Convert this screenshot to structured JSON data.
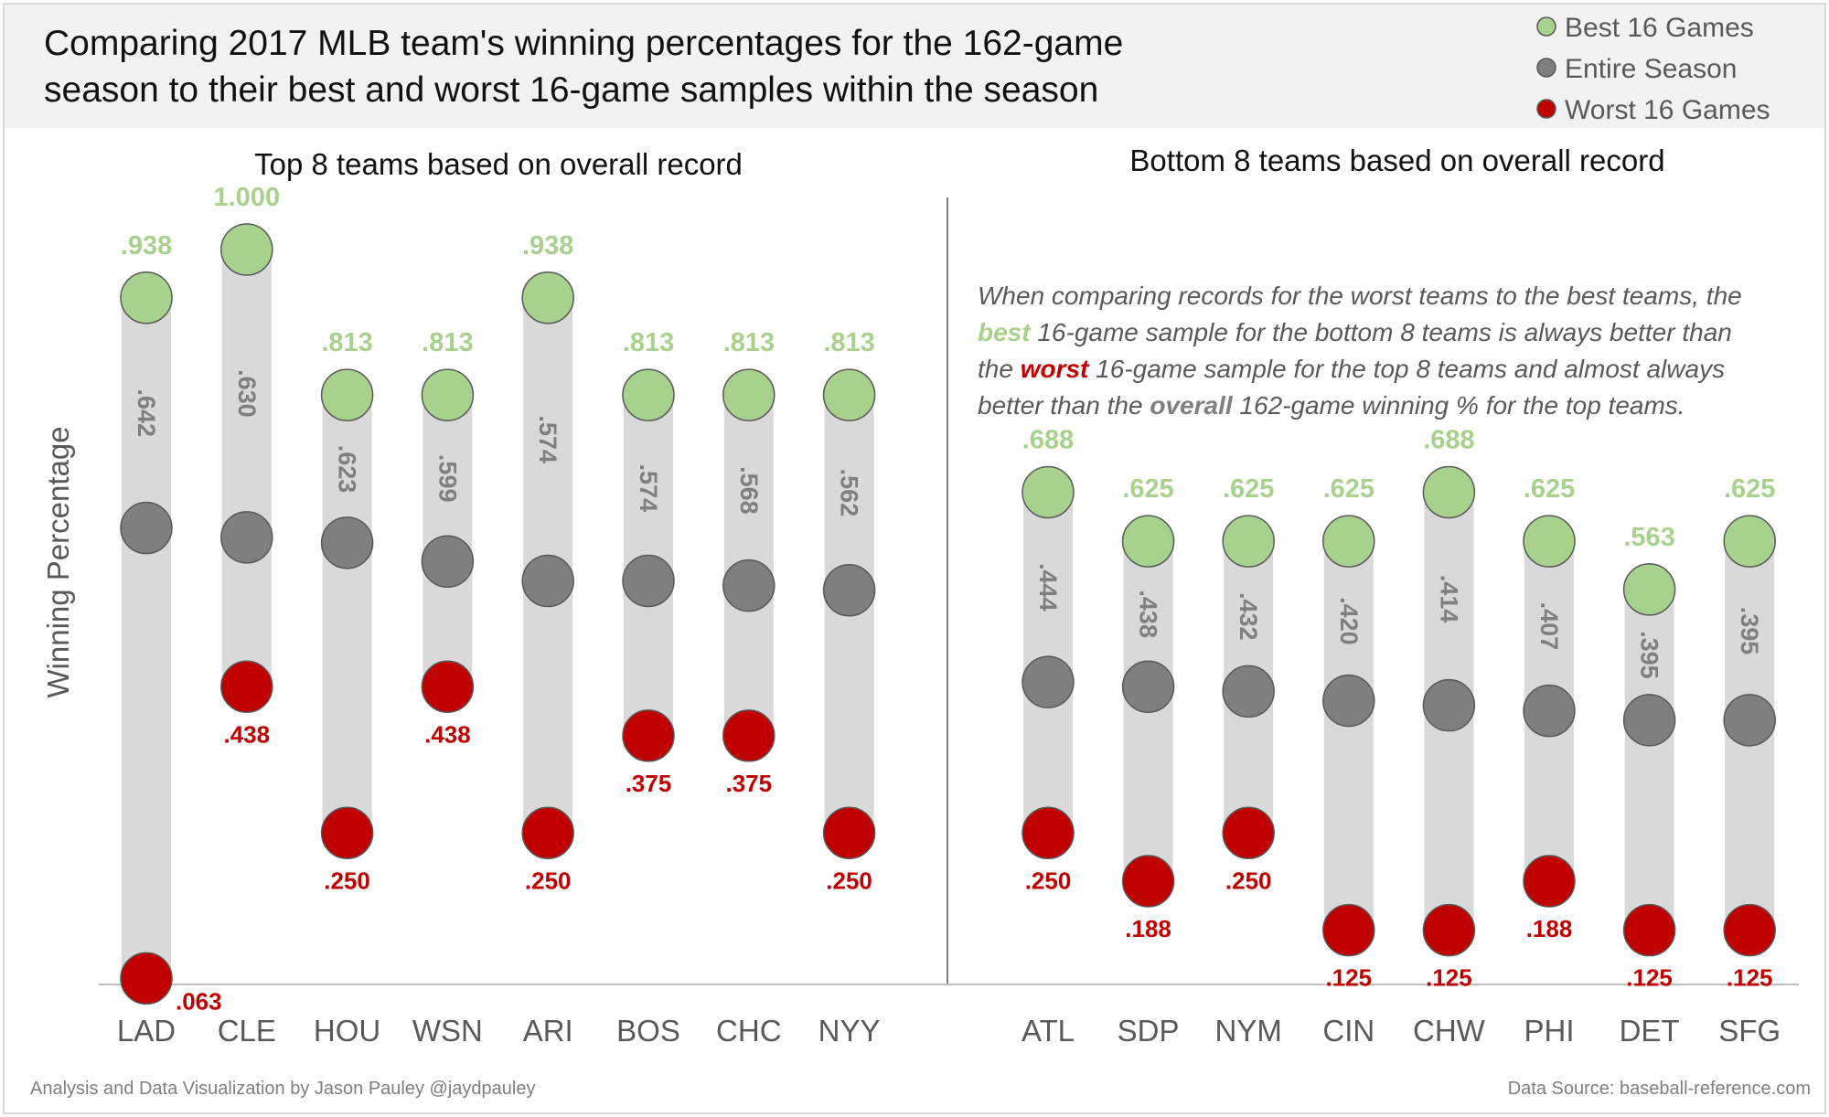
{
  "title_line1": "Comparing 2017 MLB team's winning percentages for the 162-game",
  "title_line2": "season to their best and worst 16-game samples within the season",
  "legend": [
    {
      "label": "Best 16 Games",
      "color": "#a9d18e"
    },
    {
      "label": "Entire Season",
      "color": "#7f7f7f"
    },
    {
      "label": "Worst 16 Games",
      "color": "#c00000"
    }
  ],
  "colors": {
    "best": "#a9d18e",
    "season": "#7f7f7f",
    "worst": "#c00000",
    "bar": "#d9d9d9"
  },
  "y_axis_label": "Winning Percentage",
  "note": {
    "line1": "When comparing records for the worst teams to the best teams, the",
    "line2_pre": "",
    "line2_em": "best",
    "line2_post": " 16-game sample for the bottom 8 teams is always better than",
    "line3_pre": "the ",
    "line3_em": "worst",
    "line3_post": " 16-game sample for the top 8 teams and almost always",
    "line4_pre": "better than the ",
    "line4_em": "overall",
    "line4_post": " 162-game winning % for the top teams."
  },
  "footer_left": "Analysis and Data Visualization by Jason Pauley @jaydpauley",
  "footer_right": "Data Source: baseball-reference.com",
  "chart_data": [
    {
      "type": "dot-range",
      "title": "Top 8 teams based on overall record",
      "ylabel": "Winning Percentage",
      "ylim": [
        0,
        1.05
      ],
      "categories": [
        "LAD",
        "CLE",
        "HOU",
        "WSN",
        "ARI",
        "BOS",
        "CHC",
        "NYY"
      ],
      "series": [
        {
          "name": "Best 16 Games",
          "values": [
            0.938,
            1.0,
            0.813,
            0.813,
            0.938,
            0.813,
            0.813,
            0.813
          ],
          "labels": [
            ".938",
            "1.000",
            ".813",
            ".813",
            ".938",
            ".813",
            ".813",
            ".813"
          ]
        },
        {
          "name": "Entire Season",
          "values": [
            0.642,
            0.63,
            0.623,
            0.599,
            0.574,
            0.574,
            0.568,
            0.562
          ],
          "labels": [
            ".642",
            ".630",
            ".623",
            ".599",
            ".574",
            ".574",
            ".568",
            ".562"
          ]
        },
        {
          "name": "Worst 16 Games",
          "values": [
            0.063,
            0.438,
            0.25,
            0.438,
            0.25,
            0.375,
            0.375,
            0.25
          ],
          "labels": [
            ".063",
            ".438",
            ".250",
            ".438",
            ".250",
            ".375",
            ".375",
            ".250"
          ]
        }
      ]
    },
    {
      "type": "dot-range",
      "title": "Bottom 8 teams based on overall record",
      "ylabel": "Winning Percentage",
      "ylim": [
        0,
        1.05
      ],
      "categories": [
        "ATL",
        "SDP",
        "NYM",
        "CIN",
        "CHW",
        "PHI",
        "DET",
        "SFG"
      ],
      "series": [
        {
          "name": "Best 16 Games",
          "values": [
            0.688,
            0.625,
            0.625,
            0.625,
            0.688,
            0.625,
            0.563,
            0.625
          ],
          "labels": [
            ".688",
            ".625",
            ".625",
            ".625",
            ".688",
            ".625",
            ".563",
            ".625"
          ]
        },
        {
          "name": "Entire Season",
          "values": [
            0.444,
            0.438,
            0.432,
            0.42,
            0.414,
            0.407,
            0.395,
            0.395
          ],
          "labels": [
            ".444",
            ".438",
            ".432",
            ".420",
            ".414",
            ".407",
            ".395",
            ".395"
          ]
        },
        {
          "name": "Worst 16 Games",
          "values": [
            0.25,
            0.188,
            0.25,
            0.125,
            0.125,
            0.188,
            0.125,
            0.125
          ],
          "labels": [
            ".250",
            ".188",
            ".250",
            ".125",
            ".125",
            ".188",
            ".125",
            ".125"
          ]
        }
      ]
    }
  ]
}
